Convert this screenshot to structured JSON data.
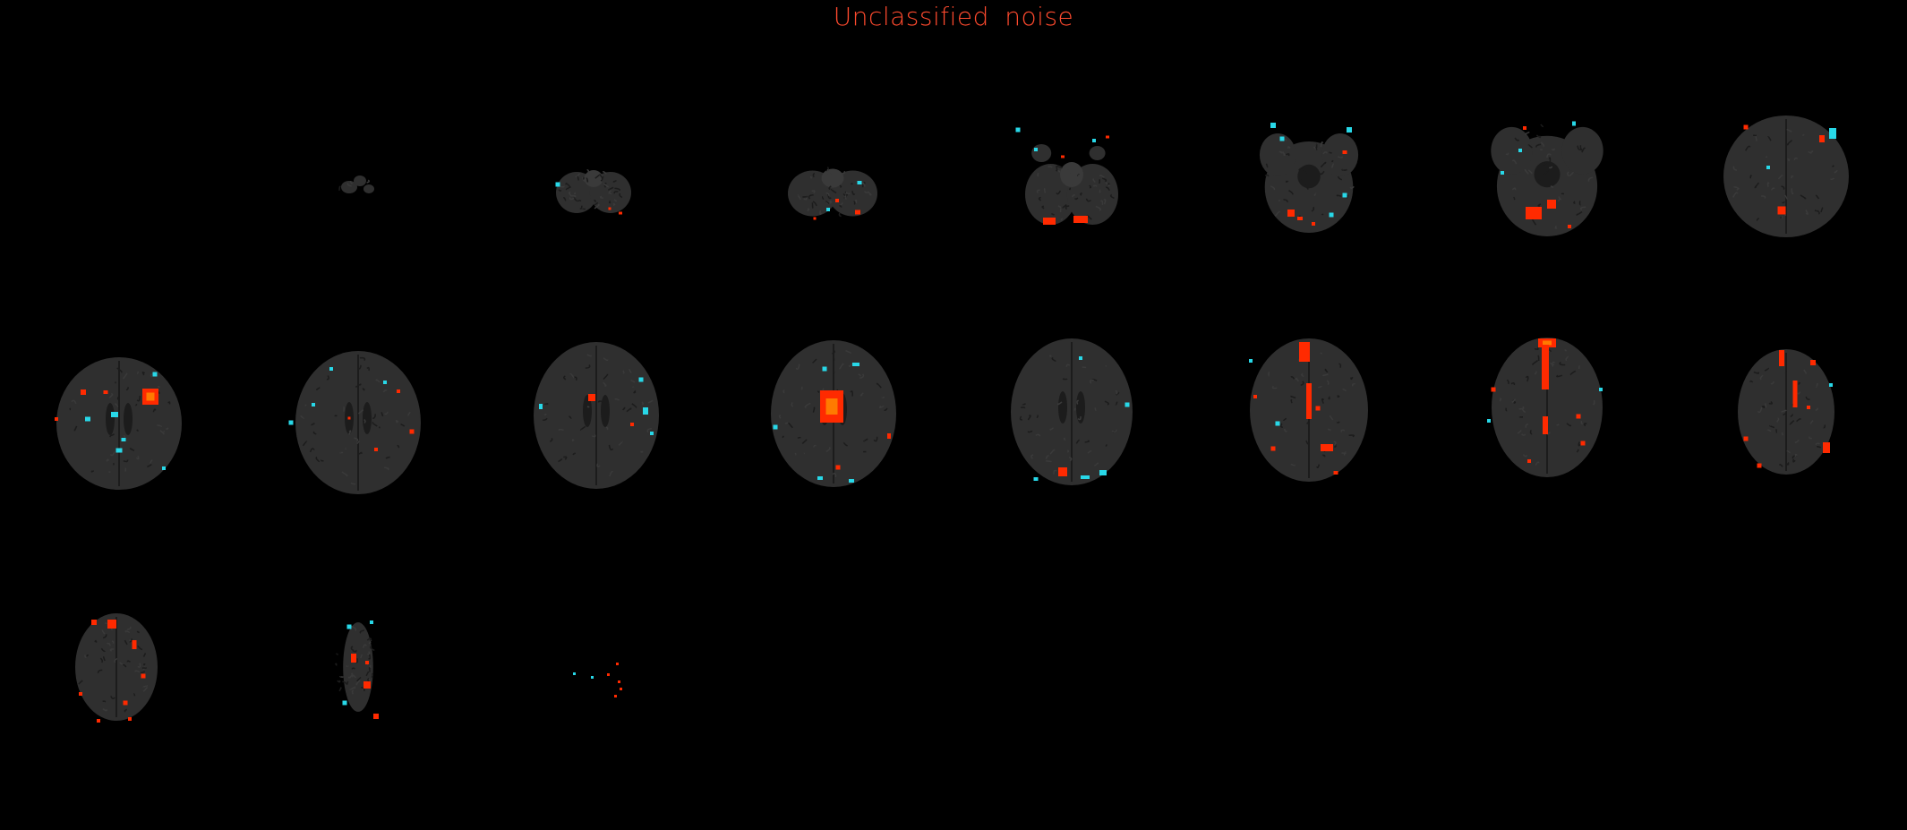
{
  "title": "Unclassified  noise",
  "colors": {
    "background": "#000000",
    "title": "#ff4a2e",
    "brain_tissue": "#2f2f2f",
    "brain_tissue_light": "#3a3a3a",
    "sulci": "#1c1c1c",
    "positive_activation": "#ff2a00",
    "positive_activation_peak": "#ff7a00",
    "negative_activation": "#28d8e8"
  },
  "montage": {
    "view": "axial",
    "rows": 3,
    "columns": 8,
    "slice_count": 19
  }
}
